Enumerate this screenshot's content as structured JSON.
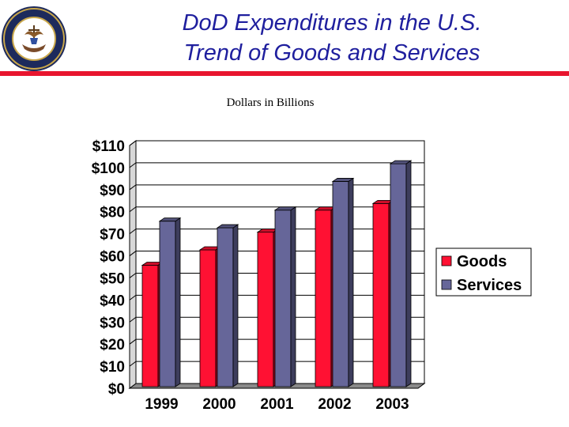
{
  "header": {
    "title_line1": "DoD Expenditures in the U.S.",
    "title_line2": "Trend of Goods and Services",
    "seal_icon": "navy-seal-icon",
    "seal_text": "DEPARTMENT OF THE NAVY · UNITED STATES OF AMERICA"
  },
  "colors": {
    "title": "#1f1f9e",
    "rule": "#e8152e",
    "goods": "#ff1133",
    "services": "#666699"
  },
  "chart_data": {
    "type": "bar",
    "title": "Dollars in Billions",
    "categories": [
      "1999",
      "2000",
      "2001",
      "2002",
      "2003"
    ],
    "series": [
      {
        "name": "Goods",
        "values": [
          55,
          62,
          70,
          80,
          83
        ]
      },
      {
        "name": "Services",
        "values": [
          75,
          72,
          80,
          93,
          101
        ]
      }
    ],
    "ylim": [
      0,
      110
    ],
    "yticks": [
      "$0",
      "$10",
      "$20",
      "$30",
      "$40",
      "$50",
      "$60",
      "$70",
      "$80",
      "$90",
      "$100",
      "$110"
    ],
    "xlabel": "",
    "ylabel": "",
    "grid": true,
    "legend": "right",
    "style": "3d"
  }
}
